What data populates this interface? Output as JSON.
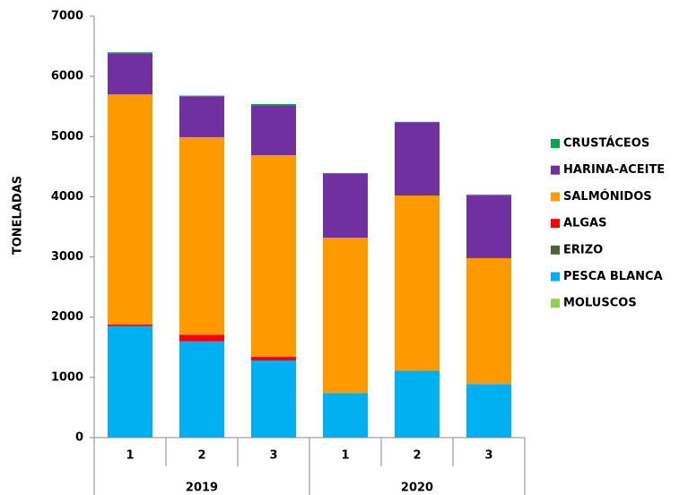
{
  "chart_data": {
    "type": "stacked_bar",
    "y_label": "TONELADAS",
    "categories": [
      "1",
      "2",
      "3",
      "1",
      "2",
      "3"
    ],
    "group_labels": [
      "2019",
      "2020"
    ],
    "ylim": [
      0,
      7000
    ],
    "yticks": [
      0,
      1000,
      2000,
      3000,
      4000,
      5000,
      6000,
      7000
    ],
    "series": [
      {
        "name": "MOLUSCOS",
        "color": "#92d050",
        "values": [
          0,
          0,
          0,
          0,
          0,
          0
        ]
      },
      {
        "name": "PESCA BLANCA",
        "color": "#00b0f0",
        "values": [
          1850,
          1600,
          1280,
          740,
          1110,
          890
        ]
      },
      {
        "name": "ERIZO",
        "color": "#4f6228",
        "values": [
          0,
          0,
          0,
          0,
          0,
          0
        ]
      },
      {
        "name": "ALGAS",
        "color": "#ff0000",
        "values": [
          30,
          110,
          60,
          0,
          0,
          0
        ]
      },
      {
        "name": "SALMÓNIDOS",
        "color": "#ff9900",
        "values": [
          3820,
          3280,
          3350,
          2580,
          2910,
          2090
        ]
      },
      {
        "name": "HARINA-ACEITE",
        "color": "#7030a0",
        "values": [
          675,
          670,
          830,
          1060,
          1220,
          1040
        ]
      },
      {
        "name": "CRUSTÁCEOS",
        "color": "#00a651",
        "values": [
          25,
          20,
          20,
          15,
          5,
          15
        ]
      }
    ]
  }
}
